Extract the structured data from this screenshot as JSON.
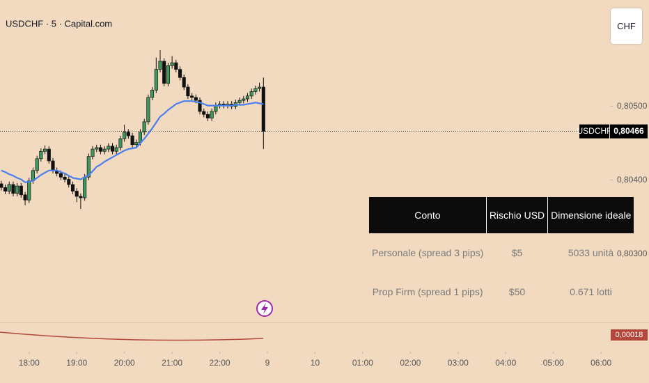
{
  "header": {
    "currency_button": "CHF"
  },
  "chart_data": {
    "type": "candlestick",
    "title": "USDCHF · 5 · Capital.com",
    "x": [
      17.417,
      17.5,
      17.583,
      17.667,
      17.75,
      17.833,
      17.917,
      18,
      18.083,
      18.167,
      18.25,
      18.333,
      18.417,
      18.5,
      18.583,
      18.667,
      18.75,
      18.833,
      18.917,
      19,
      19.083,
      19.167,
      19.25,
      19.333,
      19.417,
      19.5,
      19.583,
      19.667,
      19.75,
      19.833,
      19.917,
      20,
      20.083,
      20.167,
      20.25,
      20.333,
      20.417,
      20.5,
      20.583,
      20.667,
      20.75,
      20.833,
      20.917,
      21,
      21.083,
      21.167,
      21.25,
      21.333,
      21.417,
      21.5,
      21.583,
      21.667,
      21.75,
      21.833,
      21.917,
      22,
      22.083,
      22.167,
      22.25,
      22.333,
      22.417,
      22.5,
      22.583,
      22.667,
      22.75,
      22.833,
      22.917
    ],
    "open": [
      0.80395,
      0.8039,
      0.80385,
      0.80394,
      0.80382,
      0.80392,
      0.8038,
      0.80373,
      0.80399,
      0.80413,
      0.80429,
      0.80439,
      0.80442,
      0.80426,
      0.80413,
      0.80409,
      0.80404,
      0.80401,
      0.80394,
      0.80385,
      0.80378,
      0.80376,
      0.80404,
      0.80432,
      0.80442,
      0.80444,
      0.80439,
      0.80442,
      0.80446,
      0.80439,
      0.80444,
      0.80456,
      0.80465,
      0.8046,
      0.80448,
      0.80451,
      0.80465,
      0.80479,
      0.80512,
      0.80522,
      0.8055,
      0.80561,
      0.80531,
      0.80555,
      0.80559,
      0.8055,
      0.80539,
      0.80526,
      0.80514,
      0.80512,
      0.80508,
      0.80493,
      0.80489,
      0.80484,
      0.80493,
      0.80501,
      0.80503,
      0.80501,
      0.80503,
      0.805,
      0.80505,
      0.80508,
      0.8051,
      0.80514,
      0.8052,
      0.80524,
      0.80526
    ],
    "high": [
      0.80399,
      0.80394,
      0.80398,
      0.80398,
      0.80396,
      0.80396,
      0.80384,
      0.80403,
      0.80417,
      0.80433,
      0.80443,
      0.80447,
      0.80446,
      0.8043,
      0.80417,
      0.80413,
      0.80408,
      0.80405,
      0.80398,
      0.80389,
      0.80382,
      0.80408,
      0.80436,
      0.80446,
      0.80448,
      0.80448,
      0.80446,
      0.8045,
      0.8045,
      0.80448,
      0.8046,
      0.80475,
      0.80469,
      0.80464,
      0.80455,
      0.80469,
      0.80483,
      0.80516,
      0.80526,
      0.80566,
      0.80576,
      0.80565,
      0.80559,
      0.80568,
      0.80563,
      0.80554,
      0.80543,
      0.8053,
      0.80518,
      0.80516,
      0.80512,
      0.80497,
      0.80493,
      0.80497,
      0.80505,
      0.80507,
      0.80507,
      0.80507,
      0.80507,
      0.80509,
      0.80512,
      0.80514,
      0.80518,
      0.80524,
      0.80528,
      0.80532,
      0.80539
    ],
    "low": [
      0.80386,
      0.80381,
      0.80381,
      0.80378,
      0.80378,
      0.80376,
      0.80366,
      0.80369,
      0.80395,
      0.80409,
      0.80425,
      0.80435,
      0.80422,
      0.80409,
      0.80405,
      0.804,
      0.80397,
      0.8039,
      0.80381,
      0.8037,
      0.80361,
      0.80372,
      0.804,
      0.80428,
      0.80438,
      0.80435,
      0.80435,
      0.80438,
      0.80435,
      0.80435,
      0.8044,
      0.80452,
      0.80456,
      0.80444,
      0.80444,
      0.80447,
      0.80461,
      0.80475,
      0.80508,
      0.80518,
      0.80546,
      0.80527,
      0.80527,
      0.80551,
      0.80546,
      0.80535,
      0.80522,
      0.8051,
      0.80508,
      0.80504,
      0.80489,
      0.80485,
      0.8048,
      0.8048,
      0.80489,
      0.80497,
      0.80497,
      0.80497,
      0.80496,
      0.80496,
      0.80501,
      0.80504,
      0.80506,
      0.8051,
      0.80516,
      0.8052,
      0.80442
    ],
    "close": [
      0.8039,
      0.80385,
      0.80394,
      0.80382,
      0.80392,
      0.8038,
      0.80373,
      0.80399,
      0.80413,
      0.80429,
      0.80439,
      0.80442,
      0.80426,
      0.80413,
      0.80409,
      0.80404,
      0.80401,
      0.80394,
      0.80385,
      0.80378,
      0.80376,
      0.80404,
      0.80432,
      0.80442,
      0.80444,
      0.80439,
      0.80442,
      0.80446,
      0.80439,
      0.80444,
      0.80456,
      0.80465,
      0.8046,
      0.80448,
      0.80451,
      0.80465,
      0.80479,
      0.80512,
      0.80522,
      0.8055,
      0.80561,
      0.80531,
      0.80555,
      0.80559,
      0.8055,
      0.80539,
      0.80526,
      0.80514,
      0.80512,
      0.80508,
      0.80493,
      0.80489,
      0.80484,
      0.80493,
      0.80501,
      0.80503,
      0.80501,
      0.80503,
      0.805,
      0.80505,
      0.80508,
      0.8051,
      0.80514,
      0.8052,
      0.80524,
      0.80526,
      0.80466
    ],
    "up_color": "#3d9a5e",
    "down_color": "#111111",
    "series": [
      {
        "color": "#4a7ff0",
        "values": [
          0.80413,
          0.80411,
          0.80408,
          0.80406,
          0.80403,
          0.80401,
          0.80397,
          0.80398,
          0.80399,
          0.80403,
          0.80407,
          0.8041,
          0.80413,
          0.80413,
          0.80413,
          0.80411,
          0.80409,
          0.80406,
          0.80403,
          0.80402,
          0.80401,
          0.80404,
          0.80407,
          0.80412,
          0.80418,
          0.80421,
          0.80425,
          0.80428,
          0.80431,
          0.80434,
          0.80437,
          0.8044,
          0.80442,
          0.80443,
          0.80444,
          0.8045,
          0.80456,
          0.80463,
          0.8047,
          0.80478,
          0.80486,
          0.8049,
          0.80495,
          0.80499,
          0.80503,
          0.80505,
          0.80507,
          0.80507,
          0.80507,
          0.80506,
          0.80505,
          0.80503,
          0.80501,
          0.80501,
          0.80501,
          0.80501,
          0.80501,
          0.80501,
          0.80501,
          0.80502,
          0.80502,
          0.80502,
          0.80503,
          0.80504,
          0.80505,
          0.80504,
          0.80503
        ]
      }
    ],
    "xlim": [
      17.39,
      30.1
    ],
    "ylim": [
      0.8021,
      0.80644
    ],
    "xticks": [
      {
        "value": 18,
        "label": "18:00"
      },
      {
        "value": 19,
        "label": "19:00"
      },
      {
        "value": 20,
        "label": "20:00"
      },
      {
        "value": 21,
        "label": "21:00"
      },
      {
        "value": 22,
        "label": "22:00"
      },
      {
        "value": 23,
        "label": "9"
      },
      {
        "value": 24,
        "label": "10"
      },
      {
        "value": 25,
        "label": "01:00"
      },
      {
        "value": 26,
        "label": "02:00"
      },
      {
        "value": 27,
        "label": "03:00"
      },
      {
        "value": 28,
        "label": "04:00"
      },
      {
        "value": 29,
        "label": "05:00"
      },
      {
        "value": 30,
        "label": "06:00"
      }
    ],
    "yticks": [
      {
        "value": 0.805,
        "label": "0,80500"
      },
      {
        "value": 0.804,
        "label": "0,80400"
      },
      {
        "value": 0.803,
        "label": "0,80300"
      }
    ],
    "symbol_tag": "USDCHF",
    "last_price": {
      "value": 0.80466,
      "label": "0,80466"
    },
    "indicator_value": {
      "value": 0.00018,
      "label": "0,00018"
    },
    "indicator_color": "#b4463b"
  },
  "table": {
    "header": [
      "Conto",
      "Rischio USD",
      "Dimensione ideale"
    ],
    "rows": [
      [
        "Personale (spread 3 pips)",
        "$5",
        "5033 unità"
      ],
      [
        "Prop Firm (spread 1 pips)",
        "$50",
        "0.671 lotti"
      ]
    ]
  }
}
